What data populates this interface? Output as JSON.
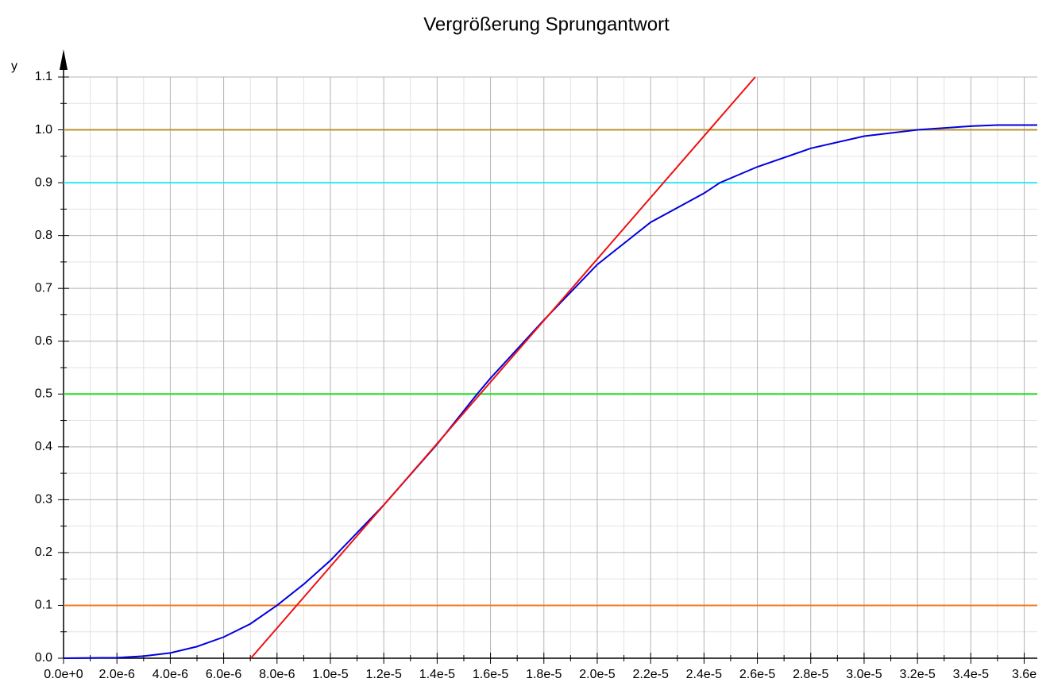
{
  "chart_data": {
    "type": "line",
    "title": "Vergrößerung Sprungantwort",
    "ylabel": "y",
    "xlim": [
      0,
      3.649e-05
    ],
    "ylim": [
      0,
      1.1
    ],
    "xticks": [
      {
        "value": 0,
        "label": "0.0e+0"
      },
      {
        "value": 2e-06,
        "label": "2.0e-6"
      },
      {
        "value": 4e-06,
        "label": "4.0e-6"
      },
      {
        "value": 6e-06,
        "label": "6.0e-6"
      },
      {
        "value": 8e-06,
        "label": "8.0e-6"
      },
      {
        "value": 1e-05,
        "label": "1.0e-5"
      },
      {
        "value": 1.2e-05,
        "label": "1.2e-5"
      },
      {
        "value": 1.4e-05,
        "label": "1.4e-5"
      },
      {
        "value": 1.6e-05,
        "label": "1.6e-5"
      },
      {
        "value": 1.8e-05,
        "label": "1.8e-5"
      },
      {
        "value": 2e-05,
        "label": "2.0e-5"
      },
      {
        "value": 2.2e-05,
        "label": "2.2e-5"
      },
      {
        "value": 2.4e-05,
        "label": "2.4e-5"
      },
      {
        "value": 2.6e-05,
        "label": "2.6e-5"
      },
      {
        "value": 2.8e-05,
        "label": "2.8e-5"
      },
      {
        "value": 3e-05,
        "label": "3.0e-5"
      },
      {
        "value": 3.2e-05,
        "label": "3.2e-5"
      },
      {
        "value": 3.4e-05,
        "label": "3.4e-5"
      },
      {
        "value": 3.6e-05,
        "label": "3.6e"
      }
    ],
    "yticks": [
      {
        "value": 0,
        "label": "0.0"
      },
      {
        "value": 0.1,
        "label": "0.1"
      },
      {
        "value": 0.2,
        "label": "0.2"
      },
      {
        "value": 0.3,
        "label": "0.3"
      },
      {
        "value": 0.4,
        "label": "0.4"
      },
      {
        "value": 0.5,
        "label": "0.5"
      },
      {
        "value": 0.6,
        "label": "0.6"
      },
      {
        "value": 0.7,
        "label": "0.7"
      },
      {
        "value": 0.8,
        "label": "0.8"
      },
      {
        "value": 0.9,
        "label": "0.9"
      },
      {
        "value": 1.0,
        "label": "1.0"
      },
      {
        "value": 1.1,
        "label": "1.1"
      }
    ],
    "grid": true,
    "series": [
      {
        "color": "#b8962e",
        "x": [
          0,
          3.649e-05
        ],
        "values": [
          1.0,
          1.0
        ]
      },
      {
        "color": "#33e6f0",
        "x": [
          0,
          3.649e-05
        ],
        "values": [
          0.9,
          0.9
        ]
      },
      {
        "color": "#22dd22",
        "x": [
          0,
          3.649e-05
        ],
        "values": [
          0.5,
          0.5
        ]
      },
      {
        "color": "#f07a20",
        "x": [
          0,
          3.649e-05
        ],
        "values": [
          0.1,
          0.1
        ]
      },
      {
        "color": "#0000dd",
        "x": [
          0,
          2e-06,
          3e-06,
          4e-06,
          5e-06,
          6e-06,
          7e-06,
          8e-06,
          9e-06,
          1e-05,
          1.2e-05,
          1.4e-05,
          1.55e-05,
          1.6e-05,
          1.8e-05,
          2e-05,
          2.2e-05,
          2.4e-05,
          2.46e-05,
          2.6e-05,
          2.8e-05,
          3e-05,
          3.2e-05,
          3.4e-05,
          3.5e-05,
          3.649e-05
        ],
        "values": [
          0,
          0.001,
          0.004,
          0.01,
          0.022,
          0.04,
          0.065,
          0.1,
          0.14,
          0.185,
          0.29,
          0.405,
          0.5,
          0.53,
          0.64,
          0.745,
          0.825,
          0.88,
          0.9,
          0.93,
          0.965,
          0.988,
          1.0,
          1.007,
          1.009,
          1.009
        ]
      },
      {
        "color": "#ee1111",
        "x": [
          7.02e-06,
          2.592e-05
        ],
        "values": [
          0,
          1.1
        ]
      }
    ]
  }
}
